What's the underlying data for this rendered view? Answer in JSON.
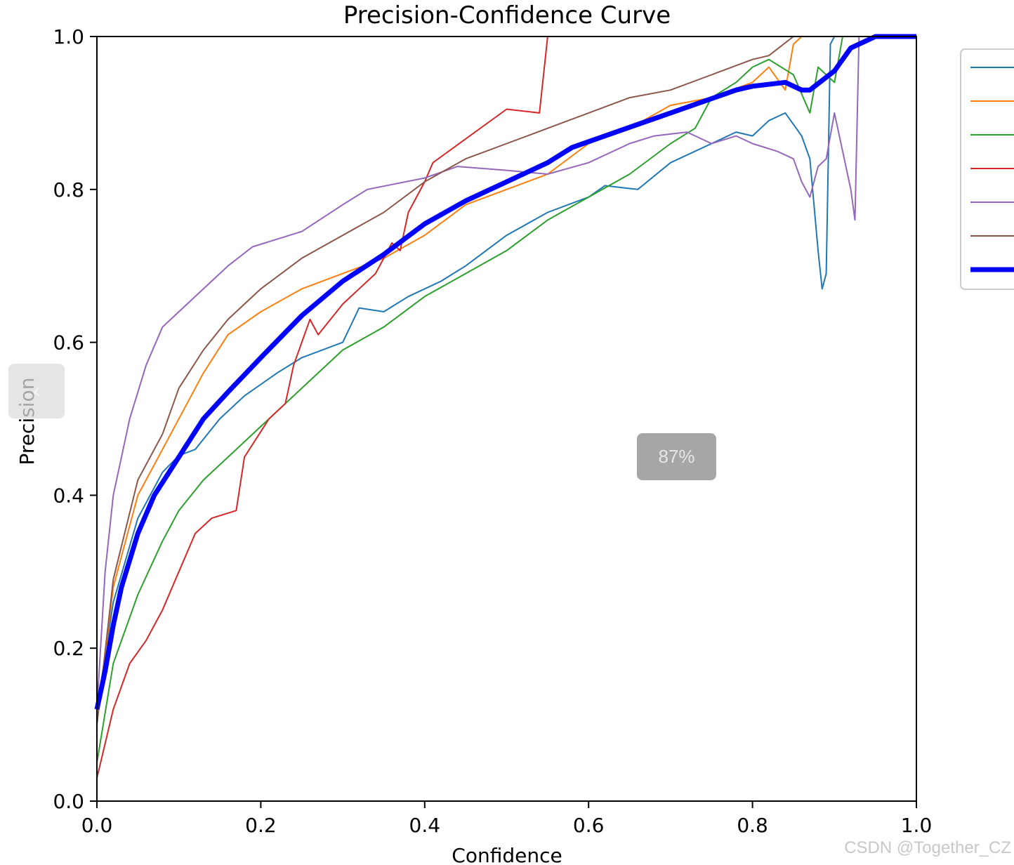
{
  "chart_data": {
    "type": "line",
    "title": "Precision-Confidence Curve",
    "xlabel": "Confidence",
    "ylabel": "Precision",
    "xlim": [
      0,
      1
    ],
    "ylim": [
      0,
      1
    ],
    "xticks": [
      "0.0",
      "0.2",
      "0.4",
      "0.6",
      "0.8",
      "1.0"
    ],
    "yticks": [
      "0.0",
      "0.2",
      "0.4",
      "0.6",
      "0.8",
      "1.0"
    ],
    "grid": false,
    "legend_position": "top-right (clipped)",
    "series": [
      {
        "color": "#1f77b4",
        "width": 2,
        "points": [
          [
            0,
            0.12
          ],
          [
            0.02,
            0.26
          ],
          [
            0.05,
            0.37
          ],
          [
            0.08,
            0.43
          ],
          [
            0.1,
            0.452
          ],
          [
            0.12,
            0.46
          ],
          [
            0.15,
            0.5
          ],
          [
            0.18,
            0.53
          ],
          [
            0.22,
            0.56
          ],
          [
            0.25,
            0.58
          ],
          [
            0.3,
            0.6
          ],
          [
            0.32,
            0.645
          ],
          [
            0.35,
            0.64
          ],
          [
            0.38,
            0.66
          ],
          [
            0.42,
            0.68
          ],
          [
            0.45,
            0.7
          ],
          [
            0.5,
            0.74
          ],
          [
            0.55,
            0.77
          ],
          [
            0.6,
            0.79
          ],
          [
            0.62,
            0.805
          ],
          [
            0.66,
            0.8
          ],
          [
            0.7,
            0.835
          ],
          [
            0.75,
            0.86
          ],
          [
            0.78,
            0.875
          ],
          [
            0.8,
            0.87
          ],
          [
            0.82,
            0.89
          ],
          [
            0.84,
            0.9
          ],
          [
            0.86,
            0.87
          ],
          [
            0.87,
            0.84
          ],
          [
            0.88,
            0.72
          ],
          [
            0.885,
            0.67
          ],
          [
            0.89,
            0.69
          ],
          [
            0.895,
            0.99
          ],
          [
            0.9,
            1.0
          ]
        ]
      },
      {
        "color": "#ff7f0e",
        "width": 2,
        "points": [
          [
            0,
            0.1
          ],
          [
            0.02,
            0.28
          ],
          [
            0.05,
            0.4
          ],
          [
            0.08,
            0.46
          ],
          [
            0.1,
            0.5
          ],
          [
            0.13,
            0.56
          ],
          [
            0.16,
            0.61
          ],
          [
            0.2,
            0.64
          ],
          [
            0.25,
            0.67
          ],
          [
            0.3,
            0.69
          ],
          [
            0.35,
            0.71
          ],
          [
            0.4,
            0.74
          ],
          [
            0.45,
            0.78
          ],
          [
            0.5,
            0.8
          ],
          [
            0.55,
            0.82
          ],
          [
            0.6,
            0.86
          ],
          [
            0.65,
            0.88
          ],
          [
            0.7,
            0.91
          ],
          [
            0.75,
            0.92
          ],
          [
            0.8,
            0.94
          ],
          [
            0.82,
            0.96
          ],
          [
            0.84,
            0.93
          ],
          [
            0.85,
            0.99
          ],
          [
            0.86,
            1.0
          ]
        ]
      },
      {
        "color": "#2ca02c",
        "width": 2,
        "points": [
          [
            0,
            0.05
          ],
          [
            0.02,
            0.18
          ],
          [
            0.05,
            0.27
          ],
          [
            0.08,
            0.34
          ],
          [
            0.1,
            0.38
          ],
          [
            0.13,
            0.42
          ],
          [
            0.17,
            0.46
          ],
          [
            0.2,
            0.49
          ],
          [
            0.25,
            0.54
          ],
          [
            0.3,
            0.59
          ],
          [
            0.35,
            0.62
          ],
          [
            0.4,
            0.66
          ],
          [
            0.45,
            0.69
          ],
          [
            0.5,
            0.72
          ],
          [
            0.55,
            0.76
          ],
          [
            0.6,
            0.79
          ],
          [
            0.65,
            0.82
          ],
          [
            0.7,
            0.86
          ],
          [
            0.73,
            0.88
          ],
          [
            0.75,
            0.92
          ],
          [
            0.78,
            0.94
          ],
          [
            0.8,
            0.96
          ],
          [
            0.82,
            0.97
          ],
          [
            0.85,
            0.95
          ],
          [
            0.87,
            0.9
          ],
          [
            0.88,
            0.96
          ],
          [
            0.9,
            0.94
          ],
          [
            0.91,
            1.0
          ]
        ]
      },
      {
        "color": "#d62728",
        "width": 2,
        "points": [
          [
            0,
            0.03
          ],
          [
            0.02,
            0.12
          ],
          [
            0.04,
            0.18
          ],
          [
            0.06,
            0.21
          ],
          [
            0.08,
            0.25
          ],
          [
            0.1,
            0.3
          ],
          [
            0.12,
            0.35
          ],
          [
            0.14,
            0.37
          ],
          [
            0.17,
            0.38
          ],
          [
            0.18,
            0.45
          ],
          [
            0.21,
            0.5
          ],
          [
            0.23,
            0.52
          ],
          [
            0.24,
            0.57
          ],
          [
            0.26,
            0.63
          ],
          [
            0.27,
            0.61
          ],
          [
            0.3,
            0.65
          ],
          [
            0.34,
            0.69
          ],
          [
            0.36,
            0.73
          ],
          [
            0.37,
            0.72
          ],
          [
            0.38,
            0.77
          ],
          [
            0.4,
            0.81
          ],
          [
            0.41,
            0.835
          ],
          [
            0.5,
            0.905
          ],
          [
            0.54,
            0.9
          ],
          [
            0.55,
            1.0
          ]
        ]
      },
      {
        "color": "#9467bd",
        "width": 2,
        "points": [
          [
            0,
            0.12
          ],
          [
            0.01,
            0.3
          ],
          [
            0.02,
            0.4
          ],
          [
            0.04,
            0.5
          ],
          [
            0.06,
            0.57
          ],
          [
            0.08,
            0.62
          ],
          [
            0.1,
            0.64
          ],
          [
            0.13,
            0.67
          ],
          [
            0.16,
            0.7
          ],
          [
            0.19,
            0.725
          ],
          [
            0.25,
            0.745
          ],
          [
            0.3,
            0.78
          ],
          [
            0.33,
            0.8
          ],
          [
            0.4,
            0.815
          ],
          [
            0.44,
            0.83
          ],
          [
            0.5,
            0.825
          ],
          [
            0.55,
            0.82
          ],
          [
            0.6,
            0.835
          ],
          [
            0.65,
            0.86
          ],
          [
            0.68,
            0.87
          ],
          [
            0.72,
            0.875
          ],
          [
            0.75,
            0.86
          ],
          [
            0.78,
            0.87
          ],
          [
            0.8,
            0.86
          ],
          [
            0.83,
            0.85
          ],
          [
            0.85,
            0.84
          ],
          [
            0.86,
            0.81
          ],
          [
            0.87,
            0.79
          ],
          [
            0.88,
            0.83
          ],
          [
            0.89,
            0.84
          ],
          [
            0.9,
            0.9
          ],
          [
            0.92,
            0.8
          ],
          [
            0.925,
            0.76
          ],
          [
            0.93,
            1.0
          ]
        ]
      },
      {
        "color": "#8c564b",
        "width": 2,
        "points": [
          [
            0,
            0.1
          ],
          [
            0.02,
            0.29
          ],
          [
            0.05,
            0.42
          ],
          [
            0.08,
            0.48
          ],
          [
            0.1,
            0.54
          ],
          [
            0.13,
            0.59
          ],
          [
            0.16,
            0.63
          ],
          [
            0.2,
            0.67
          ],
          [
            0.25,
            0.71
          ],
          [
            0.3,
            0.74
          ],
          [
            0.35,
            0.77
          ],
          [
            0.4,
            0.81
          ],
          [
            0.45,
            0.84
          ],
          [
            0.5,
            0.86
          ],
          [
            0.55,
            0.88
          ],
          [
            0.6,
            0.9
          ],
          [
            0.65,
            0.92
          ],
          [
            0.7,
            0.93
          ],
          [
            0.75,
            0.95
          ],
          [
            0.8,
            0.97
          ],
          [
            0.82,
            0.975
          ],
          [
            0.85,
            1.0
          ]
        ]
      },
      {
        "color": "#0000ff",
        "width": 7,
        "points": [
          [
            0,
            0.12
          ],
          [
            0.01,
            0.17
          ],
          [
            0.02,
            0.23
          ],
          [
            0.03,
            0.28
          ],
          [
            0.05,
            0.35
          ],
          [
            0.07,
            0.4
          ],
          [
            0.1,
            0.45
          ],
          [
            0.13,
            0.5
          ],
          [
            0.16,
            0.535
          ],
          [
            0.2,
            0.58
          ],
          [
            0.25,
            0.635
          ],
          [
            0.3,
            0.68
          ],
          [
            0.35,
            0.715
          ],
          [
            0.4,
            0.755
          ],
          [
            0.45,
            0.785
          ],
          [
            0.5,
            0.81
          ],
          [
            0.55,
            0.835
          ],
          [
            0.58,
            0.855
          ],
          [
            0.62,
            0.87
          ],
          [
            0.66,
            0.885
          ],
          [
            0.7,
            0.9
          ],
          [
            0.74,
            0.915
          ],
          [
            0.78,
            0.93
          ],
          [
            0.8,
            0.935
          ],
          [
            0.84,
            0.94
          ],
          [
            0.86,
            0.93
          ],
          [
            0.87,
            0.93
          ],
          [
            0.9,
            0.955
          ],
          [
            0.92,
            0.985
          ],
          [
            0.94,
            0.995
          ],
          [
            0.95,
            1.0
          ],
          [
            1.0,
            1.0
          ]
        ]
      }
    ]
  },
  "overlay": {
    "zoom_text": "87%",
    "left_control": "‹",
    "watermark": "CSDN @Together_CZ"
  }
}
